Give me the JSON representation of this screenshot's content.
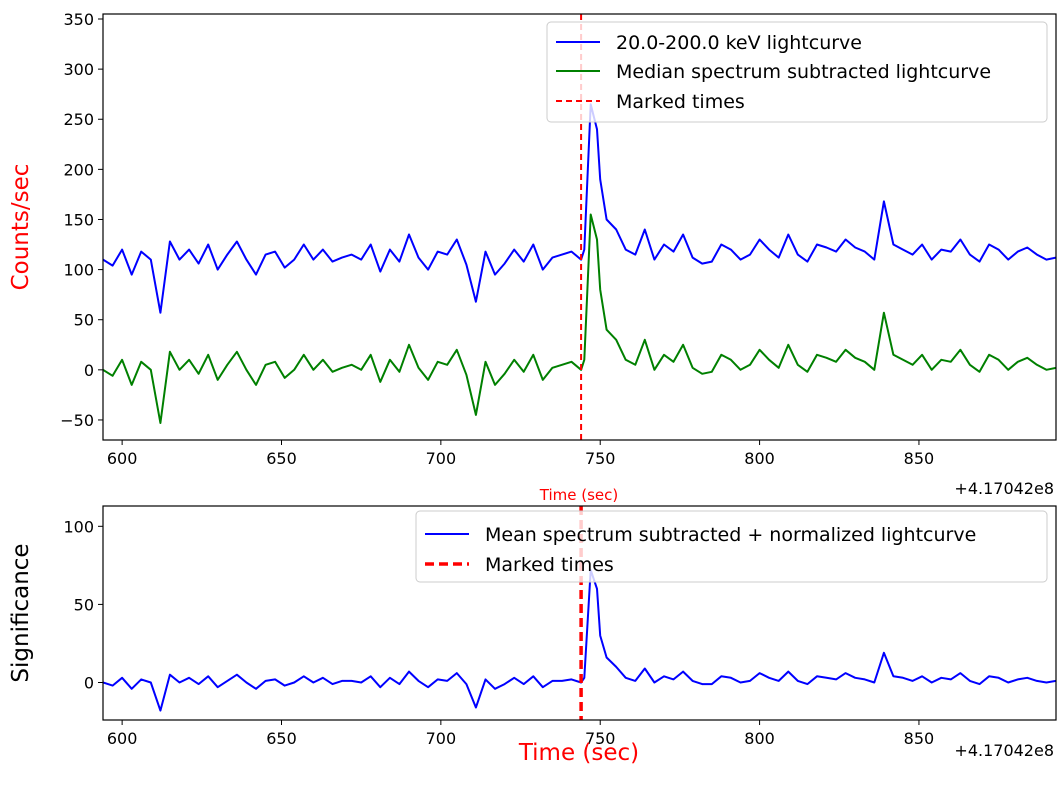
{
  "chart_data": [
    {
      "type": "line",
      "xlabel": "Time (sec)",
      "xlabel_color": "#ff0000",
      "ylabel": "Counts/sec",
      "ylabel_color": "#ff0000",
      "offset_label": "+4.17042e8",
      "xlim": [
        594,
        893
      ],
      "ylim": [
        -70,
        355
      ],
      "xticks": [
        600,
        650,
        700,
        750,
        800,
        850
      ],
      "yticks": [
        -50,
        0,
        50,
        100,
        150,
        200,
        250,
        300,
        350
      ],
      "marked_time": 744,
      "legend_position": "upper-right",
      "legend": [
        {
          "label": "20.0-200.0 keV lightcurve",
          "color": "#0000ff",
          "style": "solid"
        },
        {
          "label": "Median spectrum subtracted lightcurve",
          "color": "#008000",
          "style": "solid"
        },
        {
          "label": "Marked times",
          "color": "#ff0000",
          "style": "dashed"
        }
      ],
      "series": [
        {
          "name": "20.0-200.0 keV lightcurve",
          "color": "#0000ff",
          "x": [
            594,
            597,
            600,
            603,
            606,
            609,
            612,
            615,
            618,
            621,
            624,
            627,
            630,
            633,
            636,
            639,
            642,
            645,
            648,
            651,
            654,
            657,
            660,
            663,
            666,
            669,
            672,
            675,
            678,
            681,
            684,
            687,
            690,
            693,
            696,
            699,
            702,
            705,
            708,
            711,
            714,
            717,
            720,
            723,
            726,
            729,
            732,
            735,
            738,
            741,
            744,
            745,
            747,
            749,
            750,
            752,
            755,
            758,
            761,
            764,
            767,
            770,
            773,
            776,
            779,
            782,
            785,
            788,
            791,
            794,
            797,
            800,
            803,
            806,
            809,
            812,
            815,
            818,
            821,
            824,
            827,
            830,
            833,
            836,
            839,
            842,
            845,
            848,
            851,
            854,
            857,
            860,
            863,
            866,
            869,
            872,
            875,
            878,
            881,
            884,
            887,
            890,
            893
          ],
          "y": [
            110,
            104,
            120,
            95,
            118,
            110,
            57,
            128,
            110,
            120,
            106,
            125,
            100,
            115,
            128,
            110,
            95,
            115,
            118,
            102,
            110,
            125,
            110,
            120,
            108,
            112,
            115,
            110,
            125,
            98,
            120,
            108,
            135,
            112,
            100,
            118,
            115,
            130,
            105,
            68,
            118,
            95,
            106,
            120,
            108,
            125,
            100,
            112,
            115,
            118,
            110,
            120,
            265,
            240,
            190,
            150,
            140,
            120,
            115,
            140,
            110,
            125,
            118,
            135,
            112,
            106,
            108,
            125,
            120,
            110,
            115,
            130,
            120,
            112,
            135,
            115,
            108,
            125,
            122,
            118,
            130,
            122,
            118,
            110,
            168,
            125,
            120,
            115,
            125,
            110,
            120,
            118,
            130,
            115,
            108,
            125,
            120,
            110,
            118,
            122,
            115,
            110,
            112
          ]
        },
        {
          "name": "Median spectrum subtracted lightcurve",
          "color": "#008000",
          "x": [
            594,
            597,
            600,
            603,
            606,
            609,
            612,
            615,
            618,
            621,
            624,
            627,
            630,
            633,
            636,
            639,
            642,
            645,
            648,
            651,
            654,
            657,
            660,
            663,
            666,
            669,
            672,
            675,
            678,
            681,
            684,
            687,
            690,
            693,
            696,
            699,
            702,
            705,
            708,
            711,
            714,
            717,
            720,
            723,
            726,
            729,
            732,
            735,
            738,
            741,
            744,
            745,
            747,
            749,
            750,
            752,
            755,
            758,
            761,
            764,
            767,
            770,
            773,
            776,
            779,
            782,
            785,
            788,
            791,
            794,
            797,
            800,
            803,
            806,
            809,
            812,
            815,
            818,
            821,
            824,
            827,
            830,
            833,
            836,
            839,
            842,
            845,
            848,
            851,
            854,
            857,
            860,
            863,
            866,
            869,
            872,
            875,
            878,
            881,
            884,
            887,
            890,
            893
          ],
          "y": [
            0,
            -6,
            10,
            -15,
            8,
            0,
            -53,
            18,
            0,
            10,
            -4,
            15,
            -10,
            5,
            18,
            0,
            -15,
            5,
            8,
            -8,
            0,
            15,
            0,
            10,
            -2,
            2,
            5,
            0,
            15,
            -12,
            10,
            -2,
            25,
            2,
            -10,
            8,
            5,
            20,
            -5,
            -45,
            8,
            -15,
            -4,
            10,
            -2,
            15,
            -10,
            2,
            5,
            8,
            0,
            10,
            155,
            130,
            80,
            40,
            30,
            10,
            5,
            30,
            0,
            15,
            8,
            25,
            2,
            -4,
            -2,
            15,
            10,
            0,
            5,
            20,
            10,
            2,
            25,
            5,
            -2,
            15,
            12,
            8,
            20,
            12,
            8,
            0,
            57,
            15,
            10,
            5,
            15,
            0,
            10,
            8,
            20,
            5,
            -2,
            15,
            10,
            0,
            8,
            12,
            5,
            0,
            2
          ]
        }
      ]
    },
    {
      "type": "line",
      "xlabel": "Time (sec)",
      "xlabel_color": "#ff0000",
      "ylabel": "Significance",
      "ylabel_color": "#000000",
      "offset_label": "+4.17042e8",
      "xlim": [
        594,
        893
      ],
      "ylim": [
        -24,
        113
      ],
      "xticks": [
        600,
        650,
        700,
        750,
        800,
        850
      ],
      "yticks": [
        0,
        50,
        100
      ],
      "marked_time": 744,
      "legend_position": "upper-right",
      "legend": [
        {
          "label": "Mean spectrum subtracted + normalized lightcurve",
          "color": "#0000ff",
          "style": "solid"
        },
        {
          "label": "Marked times",
          "color": "#ff0000",
          "style": "dashed"
        }
      ],
      "series": [
        {
          "name": "Mean spectrum subtracted + normalized lightcurve",
          "color": "#0000ff",
          "x": [
            594,
            597,
            600,
            603,
            606,
            609,
            612,
            615,
            618,
            621,
            624,
            627,
            630,
            633,
            636,
            639,
            642,
            645,
            648,
            651,
            654,
            657,
            660,
            663,
            666,
            669,
            672,
            675,
            678,
            681,
            684,
            687,
            690,
            693,
            696,
            699,
            702,
            705,
            708,
            711,
            714,
            717,
            720,
            723,
            726,
            729,
            732,
            735,
            738,
            741,
            744,
            745,
            747,
            749,
            750,
            752,
            755,
            758,
            761,
            764,
            767,
            770,
            773,
            776,
            779,
            782,
            785,
            788,
            791,
            794,
            797,
            800,
            803,
            806,
            809,
            812,
            815,
            818,
            821,
            824,
            827,
            830,
            833,
            836,
            839,
            842,
            845,
            848,
            851,
            854,
            857,
            860,
            863,
            866,
            869,
            872,
            875,
            878,
            881,
            884,
            887,
            890,
            893
          ],
          "y": [
            0,
            -2,
            3,
            -4,
            2,
            0,
            -18,
            5,
            0,
            3,
            -1,
            4,
            -3,
            1,
            5,
            0,
            -4,
            1,
            2,
            -2,
            0,
            4,
            0,
            3,
            -1,
            1,
            1,
            0,
            4,
            -3,
            3,
            -1,
            7,
            1,
            -3,
            2,
            1,
            6,
            -1,
            -16,
            2,
            -4,
            -1,
            3,
            -1,
            4,
            -3,
            1,
            1,
            2,
            0,
            3,
            72,
            60,
            30,
            16,
            10,
            3,
            1,
            9,
            0,
            4,
            2,
            7,
            1,
            -1,
            -1,
            4,
            3,
            0,
            1,
            6,
            3,
            1,
            7,
            1,
            -1,
            4,
            3,
            2,
            6,
            3,
            2,
            0,
            19,
            4,
            3,
            1,
            4,
            0,
            3,
            2,
            6,
            1,
            -1,
            4,
            3,
            0,
            2,
            3,
            1,
            0,
            1
          ]
        }
      ]
    }
  ]
}
